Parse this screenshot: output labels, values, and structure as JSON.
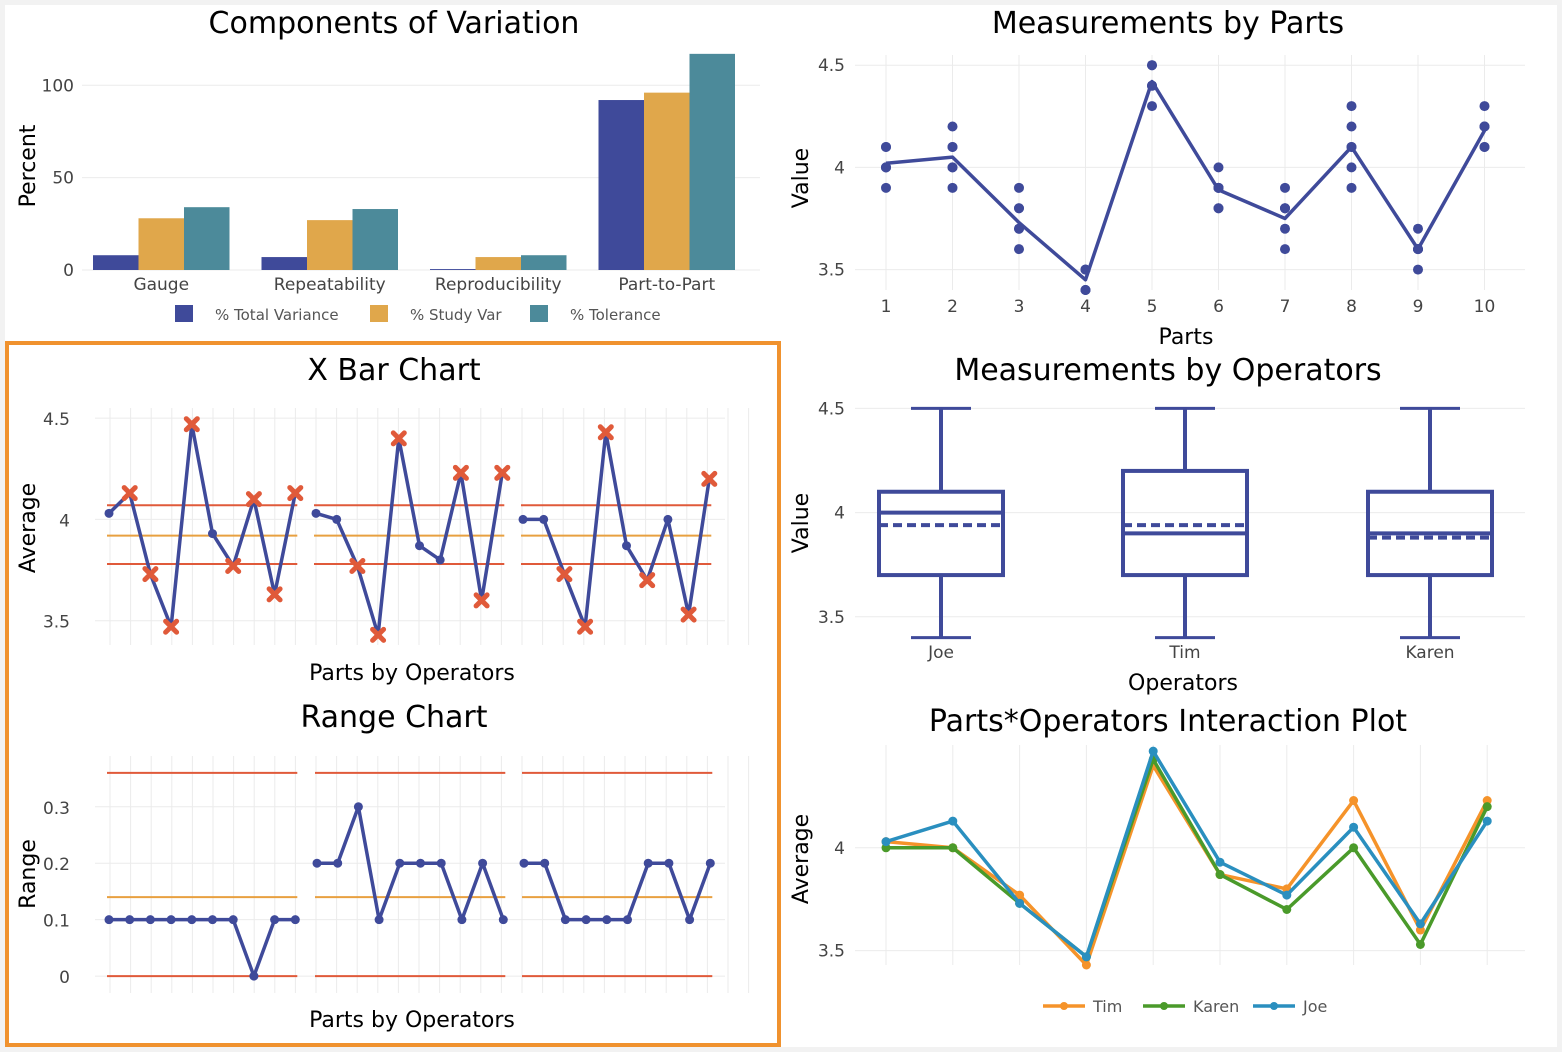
{
  "colors": {
    "navy": "#3f4a9a",
    "orange": "#e0a74b",
    "teal": "#4c8a9a",
    "limit_red": "#e05a3a",
    "center_orange": "#e8a040",
    "tim": "#f5932a",
    "karen": "#4a9a2a",
    "joe": "#2a8fbf",
    "highlight_border": "#f0922e",
    "title": "#1f2d4e"
  },
  "chart_data": [
    {
      "id": "components",
      "type": "bar",
      "title": "Components of Variation",
      "xlabel": "",
      "ylabel": "Percent",
      "categories": [
        "Gauge",
        "Repeatability",
        "Reproducibility",
        "Part-to-Part"
      ],
      "series": [
        {
          "name": "% Total Variance",
          "values": [
            8,
            7,
            0.5,
            92
          ]
        },
        {
          "name": "% Study Var",
          "values": [
            28,
            27,
            7,
            96
          ]
        },
        {
          "name": "% Tolerance",
          "values": [
            34,
            33,
            8,
            117
          ]
        }
      ],
      "ylim": [
        0,
        118
      ],
      "yticks": [
        0,
        50,
        100
      ],
      "legend": "bottom"
    },
    {
      "id": "by_parts",
      "type": "scatter",
      "title": "Measurements by Parts",
      "xlabel": "Parts",
      "ylabel": "Value",
      "xticks": [
        "1",
        "2",
        "3",
        "4",
        "5",
        "6",
        "7",
        "8",
        "9",
        "10"
      ],
      "points": [
        [
          3.9,
          4.0,
          4.0,
          4.1,
          4.1,
          4.0
        ],
        [
          3.9,
          4.0,
          4.1,
          4.1,
          4.2,
          4.0
        ],
        [
          3.6,
          3.7,
          3.7,
          3.8,
          3.8,
          3.9
        ],
        [
          3.4,
          3.4,
          3.5,
          3.5,
          3.4,
          3.5
        ],
        [
          4.3,
          4.4,
          4.5,
          4.4,
          4.5,
          4.4
        ],
        [
          3.8,
          3.9,
          4.0,
          3.9,
          3.8,
          3.9
        ],
        [
          3.6,
          3.7,
          3.8,
          3.8,
          3.9,
          3.8
        ],
        [
          3.9,
          4.0,
          4.1,
          4.2,
          4.3,
          4.1
        ],
        [
          3.5,
          3.6,
          3.7,
          3.6,
          3.6,
          3.6
        ],
        [
          4.1,
          4.2,
          4.2,
          4.3,
          4.2,
          4.1
        ]
      ],
      "means": [
        4.02,
        4.05,
        3.73,
        3.45,
        4.42,
        3.89,
        3.75,
        4.1,
        3.6,
        4.18
      ],
      "ylim": [
        3.4,
        4.55
      ],
      "yticks": [
        "3.5",
        "4",
        "4.5"
      ]
    },
    {
      "id": "xbar",
      "type": "line",
      "title": "X Bar Chart",
      "xlabel": "Parts by Operators",
      "ylabel": "Average",
      "groups": [
        {
          "values": [
            4.03,
            4.13,
            3.73,
            3.47,
            4.47,
            3.93,
            3.77,
            4.1,
            3.63,
            4.13
          ]
        },
        {
          "values": [
            4.03,
            4.0,
            3.77,
            3.43,
            4.4,
            3.87,
            3.8,
            4.23,
            3.6,
            4.23
          ]
        },
        {
          "values": [
            4.0,
            4.0,
            3.73,
            3.47,
            4.43,
            3.87,
            3.7,
            4.0,
            3.53,
            4.2
          ]
        }
      ],
      "ucl": 4.07,
      "center": 3.92,
      "lcl": 3.78,
      "ylim": [
        3.38,
        4.55
      ],
      "yticks": [
        "3.5",
        "4",
        "4.5"
      ]
    },
    {
      "id": "range",
      "type": "line",
      "title": "Range Chart",
      "xlabel": "Parts by Operators",
      "ylabel": "Range",
      "groups": [
        {
          "values": [
            0.1,
            0.1,
            0.1,
            0.1,
            0.1,
            0.1,
            0.1,
            0.0,
            0.1,
            0.1
          ]
        },
        {
          "values": [
            0.2,
            0.2,
            0.3,
            0.1,
            0.2,
            0.2,
            0.2,
            0.1,
            0.2,
            0.1
          ]
        },
        {
          "values": [
            0.2,
            0.2,
            0.1,
            0.1,
            0.1,
            0.1,
            0.2,
            0.2,
            0.1,
            0.2
          ]
        }
      ],
      "ucl": 0.36,
      "center": 0.14,
      "lcl": 0.0,
      "ylim": [
        -0.03,
        0.39
      ],
      "yticks": [
        "0",
        "0.1",
        "0.2",
        "0.3"
      ]
    },
    {
      "id": "by_operators",
      "type": "box",
      "title": "Measurements by Operators",
      "xlabel": "Operators",
      "ylabel": "Value",
      "categories": [
        "Joe",
        "Tim",
        "Karen"
      ],
      "boxes": [
        {
          "min": 3.4,
          "q1": 3.7,
          "median": 4.0,
          "q3": 4.1,
          "max": 4.5,
          "mean": 3.94
        },
        {
          "min": 3.4,
          "q1": 3.7,
          "median": 3.9,
          "q3": 4.2,
          "max": 4.5,
          "mean": 3.94
        },
        {
          "min": 3.4,
          "q1": 3.7,
          "median": 3.9,
          "q3": 4.1,
          "max": 4.5,
          "mean": 3.88
        }
      ],
      "ylim": [
        3.35,
        4.55
      ],
      "yticks": [
        "3.5",
        "4",
        "4.5"
      ]
    },
    {
      "id": "interaction",
      "type": "line",
      "title": "Parts*Operators Interaction Plot",
      "xlabel": "",
      "ylabel": "Average",
      "series": [
        {
          "name": "Tim",
          "values": [
            4.03,
            4.0,
            3.77,
            3.43,
            4.4,
            3.87,
            3.8,
            4.23,
            3.6,
            4.23
          ]
        },
        {
          "name": "Karen",
          "values": [
            4.0,
            4.0,
            3.73,
            3.47,
            4.43,
            3.87,
            3.7,
            4.0,
            3.53,
            4.2
          ]
        },
        {
          "name": "Joe",
          "values": [
            4.03,
            4.13,
            3.73,
            3.47,
            4.47,
            3.93,
            3.77,
            4.1,
            3.63,
            4.13
          ]
        }
      ],
      "ylim": [
        3.43,
        4.5
      ],
      "yticks": [
        "3.5",
        "4"
      ],
      "legend": "bottom"
    }
  ]
}
